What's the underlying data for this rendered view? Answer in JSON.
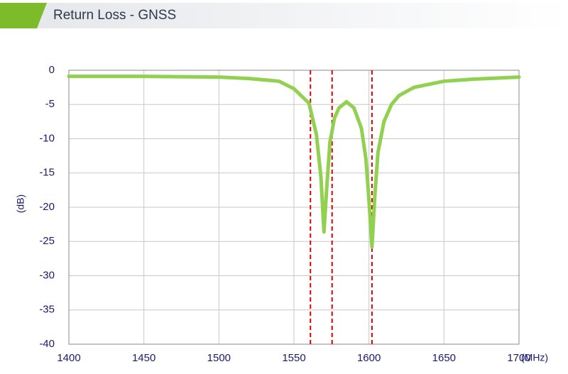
{
  "chart_data": {
    "type": "line",
    "title": "Return Loss - GNSS",
    "x": [
      1400,
      1450,
      1500,
      1520,
      1540,
      1550,
      1560,
      1565,
      1568,
      1570,
      1572,
      1574,
      1577,
      1580,
      1585,
      1590,
      1595,
      1598,
      1600,
      1602,
      1604,
      1606,
      1610,
      1615,
      1620,
      1630,
      1650,
      1670,
      1700
    ],
    "values": [
      -0.9,
      -0.9,
      -1.0,
      -1.2,
      -1.6,
      -2.7,
      -4.8,
      -9.4,
      -15.6,
      -23.6,
      -16.7,
      -10.5,
      -7.0,
      -5.5,
      -4.6,
      -5.5,
      -8.5,
      -13.0,
      -19.0,
      -25.8,
      -18.0,
      -12.0,
      -7.5,
      -5.0,
      -3.7,
      -2.5,
      -1.6,
      -1.3,
      -1.0
    ],
    "color": "#92d050",
    "reference_lines": [
      1561,
      1575.42,
      1602
    ],
    "reference_color": "#e00000",
    "xlabel": "(MHz)",
    "ylabel": "(dB)",
    "xlim": [
      1400,
      1700
    ],
    "xticks": [
      1400,
      1450,
      1500,
      1550,
      1600,
      1650,
      1700
    ],
    "ylim": [
      -40,
      0
    ],
    "yticks": [
      0,
      -5,
      -10,
      -15,
      -20,
      -25,
      -30,
      -35,
      -40
    ],
    "grid": true
  }
}
